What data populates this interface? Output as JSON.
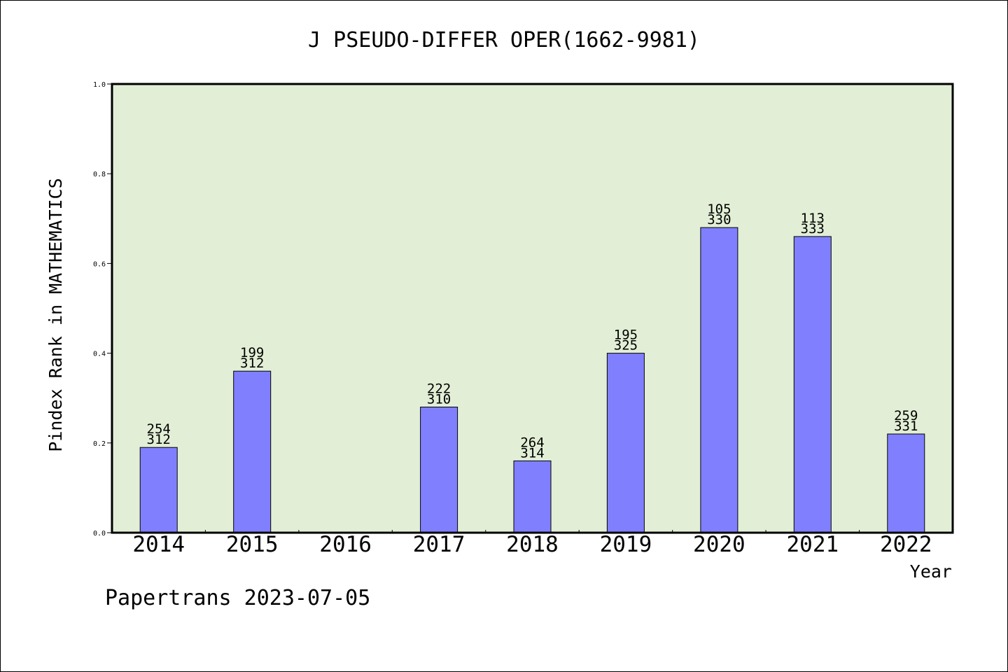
{
  "chart_data": {
    "type": "bar",
    "title": "J PSEUDO-DIFFER OPER(1662-9981)",
    "xlabel": "Year",
    "ylabel": "Pindex Rank in MATHEMATICS",
    "ylim": [
      0,
      1.0
    ],
    "yticks": [
      "0.0",
      "0.2",
      "0.4",
      "0.6",
      "0.8",
      "1.0"
    ],
    "categories": [
      "2014",
      "2015",
      "2016",
      "2017",
      "2018",
      "2019",
      "2020",
      "2021",
      "2022"
    ],
    "values": [
      0.19,
      0.36,
      null,
      0.28,
      0.16,
      0.4,
      0.68,
      0.66,
      0.22
    ],
    "labels_top": [
      "254",
      "199",
      "",
      "222",
      "264",
      "195",
      "105",
      "113",
      "259"
    ],
    "labels_bottom": [
      "312",
      "312",
      "",
      "310",
      "314",
      "325",
      "330",
      "333",
      "331"
    ],
    "grid": false,
    "colors": {
      "plot_background": "#e2efd6",
      "bar_fill": "#8080ff",
      "bar_stroke": "#000000"
    }
  },
  "footer": "Papertrans 2023-07-05"
}
